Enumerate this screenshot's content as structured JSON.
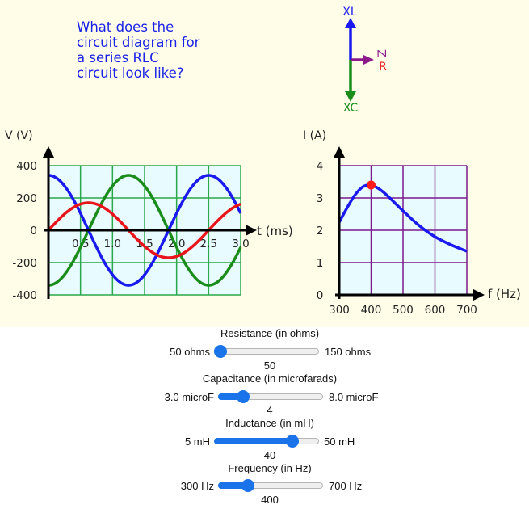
{
  "question": "What does the\ncircuit diagram for\na series RLC\ncircuit look like?",
  "phasor": {
    "xl_label": "XL",
    "xc_label": "XC",
    "z_label": "Z",
    "r_label": "R"
  },
  "voltage_chart": {
    "ylabel": "V (V)",
    "xlabel": "t (ms)",
    "y_ticks": [
      "400",
      "200",
      "0",
      "-200",
      "-400"
    ],
    "x_ticks": [
      "0.5",
      "1.0",
      "1.5",
      "2.0",
      "2.5",
      "3.0"
    ]
  },
  "current_chart": {
    "ylabel": "I (A)",
    "xlabel": "f (Hz)",
    "y_ticks": [
      "4",
      "3",
      "2",
      "1",
      "0"
    ],
    "x_ticks": [
      "300",
      "400",
      "500",
      "600",
      "700"
    ]
  },
  "chart_data": [
    {
      "type": "line",
      "ylabel": "V (V)",
      "xlabel": "t (ms)",
      "xlim": [
        0,
        3.0
      ],
      "ylim": [
        -400,
        400
      ],
      "grid": true,
      "series": [
        {
          "color": "#1a1aee",
          "amplitude": 340,
          "phase": 1.5708,
          "frequency_hz": 400
        },
        {
          "color": "#e8151b",
          "amplitude": 170,
          "phase": 0,
          "frequency_hz": 400
        },
        {
          "color": "#1a8c1a",
          "amplitude": 340,
          "phase": -1.5708,
          "frequency_hz": 400
        }
      ]
    },
    {
      "type": "line",
      "ylabel": "I (A)",
      "xlabel": "f (Hz)",
      "xlim": [
        300,
        700
      ],
      "ylim": [
        0,
        4
      ],
      "grid": true,
      "series": [
        {
          "color": "#1a1aee",
          "x": [
            300,
            325,
            350,
            375,
            400,
            425,
            450,
            500,
            550,
            600,
            650,
            700
          ],
          "y": [
            2.25,
            2.7,
            3.1,
            3.35,
            3.4,
            3.28,
            3.08,
            2.6,
            2.15,
            1.8,
            1.55,
            1.35
          ]
        }
      ],
      "marker": {
        "x": 400,
        "y": 3.4,
        "color": "#ff1a1a"
      }
    }
  ],
  "controls": [
    {
      "title": "Resistance (in ohms)",
      "min_label": "50 ohms",
      "max_label": "150 ohms",
      "value": "50",
      "fraction": 0.0
    },
    {
      "title": "Capacitance (in microfarads)",
      "min_label": "3.0 microF",
      "max_label": "8.0 microF",
      "value": "4",
      "fraction": 0.2
    },
    {
      "title": "Inductance (in mH)",
      "min_label": "5 mH",
      "max_label": "50 mH",
      "value": "40",
      "fraction": 0.78
    },
    {
      "title": "Frequency (in Hz)",
      "min_label": "300 Hz",
      "max_label": "700 Hz",
      "value": "400",
      "fraction": 0.25
    }
  ],
  "colors": {
    "panel_bg": "#fffde8",
    "plot_bg": "#e8fbff",
    "grid_v": "#2aa84a",
    "grid_i": "#7a1a8c",
    "accent": "#1a73e8"
  }
}
